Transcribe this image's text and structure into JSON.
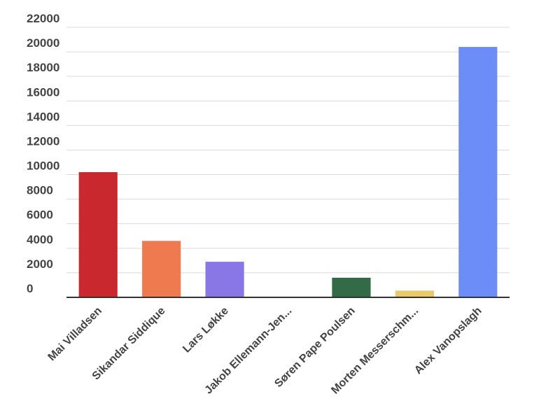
{
  "chart_data": {
    "type": "bar",
    "title": "",
    "xlabel": "",
    "ylabel": "",
    "ylim": [
      0,
      22000
    ],
    "yticks": [
      0,
      2000,
      4000,
      6000,
      8000,
      10000,
      12000,
      14000,
      16000,
      18000,
      20000,
      22000
    ],
    "grid": true,
    "legend": "none",
    "categories": [
      "Mai Villadsen",
      "Sikandar Siddique",
      "Lars Løkke",
      "Jakob Ellemann-Jen...",
      "Søren Pape Poulsen",
      "Morten Messerschm...",
      "Alex Vanopslagh"
    ],
    "values": [
      10200,
      4600,
      2900,
      0,
      1600,
      550,
      20400
    ],
    "colors": [
      "#c9282e",
      "#ef7a50",
      "#8a77e6",
      "#3a74c4",
      "#346b47",
      "#e9c96b",
      "#6c8df7"
    ]
  }
}
